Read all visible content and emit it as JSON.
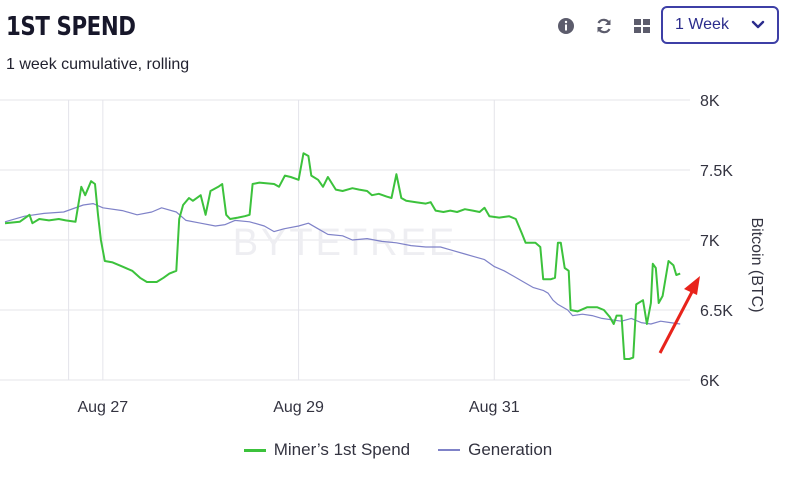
{
  "header": {
    "title": "1ST SPEND",
    "subtitle": "1 week cumulative, rolling",
    "timeframe_selected": "1 Week"
  },
  "toolbar": {
    "icons": [
      "info-icon",
      "refresh-icon",
      "grid-icon",
      "chevron-down-icon"
    ]
  },
  "watermark": "BYTETREE",
  "colors": {
    "green_series": "#3cc23c",
    "blue_series": "#7f82c8",
    "grid": "#e4e4ea",
    "accent": "#3d3fa6",
    "arrow": "#e8231b"
  },
  "chart_data": {
    "type": "line",
    "x_tick_labels": [
      "Aug 27",
      "Aug 29",
      "Aug 31"
    ],
    "y_ticks": [
      6000,
      6500,
      7000,
      7500,
      8000
    ],
    "y_tick_labels": [
      "6K",
      "6.5K",
      "7K",
      "7.5K",
      "8K"
    ],
    "ylim": [
      6000,
      8000
    ],
    "xlim": [
      0,
      7
    ],
    "ylabel": "Bitcoin (BTC)",
    "legend_position": "bottom",
    "grid": true,
    "series": [
      {
        "name": "Miner’s 1st Spend",
        "color": "#3cc23c",
        "points": [
          [
            0.0,
            7120
          ],
          [
            0.15,
            7130
          ],
          [
            0.25,
            7180
          ],
          [
            0.28,
            7120
          ],
          [
            0.35,
            7150
          ],
          [
            0.45,
            7140
          ],
          [
            0.55,
            7150
          ],
          [
            0.62,
            7140
          ],
          [
            0.72,
            7130
          ],
          [
            0.78,
            7380
          ],
          [
            0.82,
            7320
          ],
          [
            0.88,
            7420
          ],
          [
            0.92,
            7400
          ],
          [
            0.95,
            7180
          ],
          [
            0.98,
            7000
          ],
          [
            1.02,
            6850
          ],
          [
            1.1,
            6840
          ],
          [
            1.2,
            6810
          ],
          [
            1.3,
            6780
          ],
          [
            1.38,
            6730
          ],
          [
            1.45,
            6700
          ],
          [
            1.55,
            6700
          ],
          [
            1.62,
            6730
          ],
          [
            1.68,
            6760
          ],
          [
            1.75,
            6780
          ],
          [
            1.78,
            7150
          ],
          [
            1.82,
            7250
          ],
          [
            1.88,
            7300
          ],
          [
            1.92,
            7280
          ],
          [
            2.0,
            7320
          ],
          [
            2.05,
            7180
          ],
          [
            2.1,
            7350
          ],
          [
            2.18,
            7380
          ],
          [
            2.22,
            7400
          ],
          [
            2.26,
            7180
          ],
          [
            2.3,
            7150
          ],
          [
            2.38,
            7160
          ],
          [
            2.45,
            7170
          ],
          [
            2.5,
            7180
          ],
          [
            2.53,
            7400
          ],
          [
            2.6,
            7410
          ],
          [
            2.75,
            7400
          ],
          [
            2.8,
            7380
          ],
          [
            2.86,
            7460
          ],
          [
            2.92,
            7450
          ],
          [
            3.0,
            7430
          ],
          [
            3.05,
            7620
          ],
          [
            3.1,
            7600
          ],
          [
            3.13,
            7460
          ],
          [
            3.2,
            7430
          ],
          [
            3.25,
            7380
          ],
          [
            3.3,
            7450
          ],
          [
            3.38,
            7360
          ],
          [
            3.45,
            7350
          ],
          [
            3.55,
            7370
          ],
          [
            3.62,
            7360
          ],
          [
            3.7,
            7350
          ],
          [
            3.75,
            7320
          ],
          [
            3.82,
            7330
          ],
          [
            3.9,
            7310
          ],
          [
            3.95,
            7300
          ],
          [
            4.0,
            7470
          ],
          [
            4.05,
            7300
          ],
          [
            4.1,
            7280
          ],
          [
            4.2,
            7270
          ],
          [
            4.3,
            7260
          ],
          [
            4.35,
            7270
          ],
          [
            4.4,
            7210
          ],
          [
            4.48,
            7200
          ],
          [
            4.55,
            7210
          ],
          [
            4.62,
            7200
          ],
          [
            4.7,
            7220
          ],
          [
            4.78,
            7210
          ],
          [
            4.85,
            7200
          ],
          [
            4.9,
            7230
          ],
          [
            4.95,
            7170
          ],
          [
            5.05,
            7160
          ],
          [
            5.15,
            7170
          ],
          [
            5.22,
            7150
          ],
          [
            5.28,
            7050
          ],
          [
            5.32,
            6980
          ],
          [
            5.42,
            6980
          ],
          [
            5.47,
            6950
          ],
          [
            5.5,
            6720
          ],
          [
            5.58,
            6720
          ],
          [
            5.62,
            6730
          ],
          [
            5.65,
            6980
          ],
          [
            5.68,
            6980
          ],
          [
            5.72,
            6800
          ],
          [
            5.76,
            6780
          ],
          [
            5.78,
            6500
          ],
          [
            5.85,
            6490
          ],
          [
            5.95,
            6520
          ],
          [
            6.05,
            6520
          ],
          [
            6.12,
            6500
          ],
          [
            6.18,
            6450
          ],
          [
            6.22,
            6400
          ],
          [
            6.25,
            6460
          ],
          [
            6.3,
            6460
          ],
          [
            6.33,
            6150
          ],
          [
            6.38,
            6150
          ],
          [
            6.42,
            6160
          ],
          [
            6.45,
            6540
          ],
          [
            6.52,
            6570
          ],
          [
            6.56,
            6400
          ],
          [
            6.6,
            6550
          ],
          [
            6.62,
            6830
          ],
          [
            6.65,
            6800
          ],
          [
            6.68,
            6550
          ],
          [
            6.72,
            6600
          ],
          [
            6.78,
            6850
          ],
          [
            6.83,
            6820
          ],
          [
            6.86,
            6750
          ],
          [
            6.9,
            6760
          ]
        ]
      },
      {
        "name": "Generation",
        "color": "#7f82c8",
        "points": [
          [
            0.0,
            7130
          ],
          [
            0.2,
            7170
          ],
          [
            0.4,
            7190
          ],
          [
            0.6,
            7200
          ],
          [
            0.8,
            7250
          ],
          [
            0.9,
            7260
          ],
          [
            1.0,
            7230
          ],
          [
            1.2,
            7210
          ],
          [
            1.35,
            7180
          ],
          [
            1.5,
            7200
          ],
          [
            1.6,
            7230
          ],
          [
            1.75,
            7200
          ],
          [
            1.85,
            7140
          ],
          [
            2.0,
            7120
          ],
          [
            2.15,
            7100
          ],
          [
            2.25,
            7110
          ],
          [
            2.35,
            7140
          ],
          [
            2.5,
            7130
          ],
          [
            2.65,
            7100
          ],
          [
            2.75,
            7060
          ],
          [
            2.85,
            7080
          ],
          [
            3.0,
            7100
          ],
          [
            3.1,
            7120
          ],
          [
            3.2,
            7080
          ],
          [
            3.3,
            7040
          ],
          [
            3.45,
            7030
          ],
          [
            3.55,
            7000
          ],
          [
            3.7,
            7010
          ],
          [
            3.85,
            6990
          ],
          [
            4.0,
            6980
          ],
          [
            4.15,
            6960
          ],
          [
            4.3,
            6950
          ],
          [
            4.45,
            6950
          ],
          [
            4.55,
            6930
          ],
          [
            4.7,
            6900
          ],
          [
            4.8,
            6880
          ],
          [
            4.9,
            6860
          ],
          [
            5.0,
            6810
          ],
          [
            5.1,
            6780
          ],
          [
            5.2,
            6740
          ],
          [
            5.3,
            6700
          ],
          [
            5.4,
            6660
          ],
          [
            5.5,
            6640
          ],
          [
            5.55,
            6620
          ],
          [
            5.6,
            6570
          ],
          [
            5.65,
            6540
          ],
          [
            5.75,
            6500
          ],
          [
            5.8,
            6460
          ],
          [
            5.9,
            6470
          ],
          [
            6.0,
            6460
          ],
          [
            6.1,
            6440
          ],
          [
            6.2,
            6430
          ],
          [
            6.3,
            6420
          ],
          [
            6.4,
            6440
          ],
          [
            6.5,
            6410
          ],
          [
            6.6,
            6400
          ],
          [
            6.7,
            6420
          ],
          [
            6.8,
            6410
          ],
          [
            6.9,
            6400
          ]
        ]
      }
    ]
  },
  "legend": {
    "items": [
      "Miner’s 1st Spend",
      "Generation"
    ]
  }
}
